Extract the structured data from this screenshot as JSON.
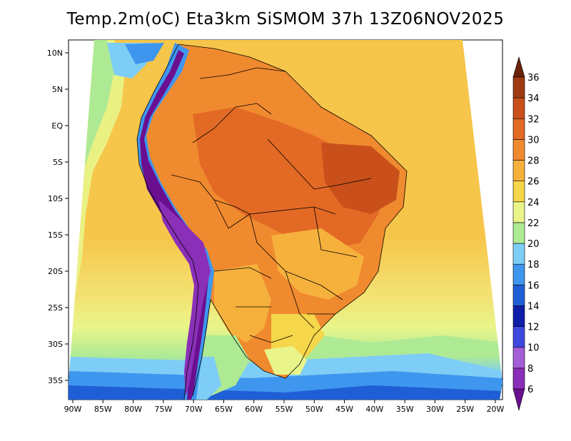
{
  "title": "Temp.2m(oC) Eta3km SiSMOM 37h 13Z06NOV2025",
  "axes": {
    "lon_labels": [
      "90W",
      "85W",
      "80W",
      "75W",
      "70W",
      "65W",
      "60W",
      "55W",
      "50W",
      "45W",
      "40W",
      "35W",
      "30W",
      "25W",
      "20W"
    ],
    "lat_labels": [
      "10N",
      "5N",
      "EQ",
      "5S",
      "10S",
      "15S",
      "20S",
      "25S",
      "30S",
      "35S"
    ]
  },
  "colorbar": {
    "levels": [
      "6",
      "8",
      "10",
      "12",
      "14",
      "16",
      "18",
      "20",
      "22",
      "24",
      "26",
      "28",
      "30",
      "32",
      "34",
      "36"
    ],
    "colors": [
      "#6a0f8f",
      "#8a2fb8",
      "#a45fd8",
      "#3f49e0",
      "#0f1ea8",
      "#1f5fd6",
      "#3f96ee",
      "#7ecdf7",
      "#aeea94",
      "#e9f58a",
      "#f6d64a",
      "#f6b13d",
      "#f08a2f",
      "#e36a25",
      "#c9501b",
      "#9e3a11",
      "#6b220a"
    ]
  }
}
